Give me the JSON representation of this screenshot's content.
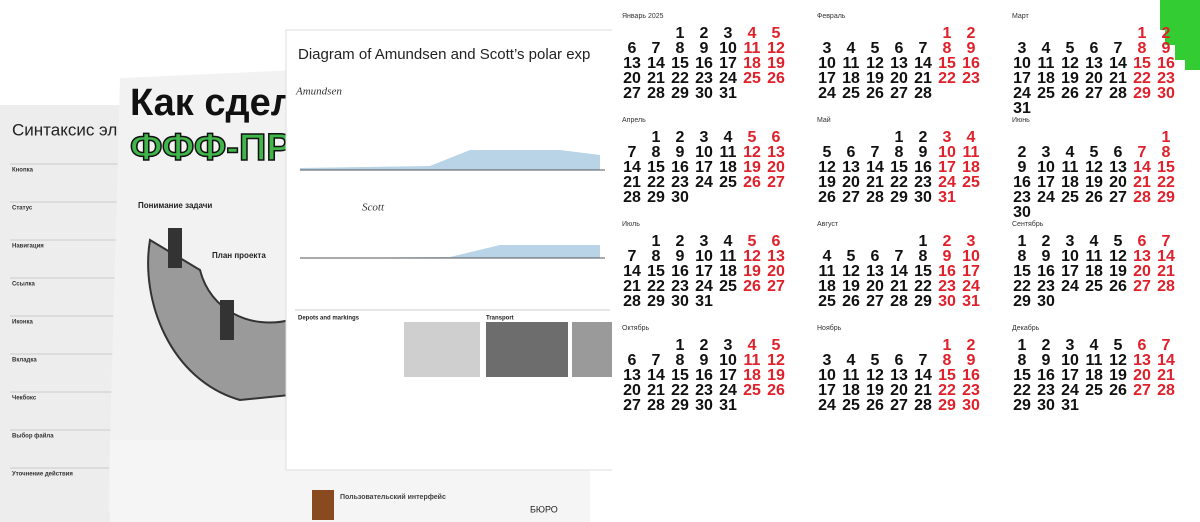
{
  "poster_syntax": {
    "title": "Синтаксис эл",
    "rows": [
      "Кнопка",
      "Статус",
      "Навигация",
      "Ссылка",
      "Иконка",
      "Вкладка",
      "Чекбокс",
      "Выбор файла",
      "Уточнение действия"
    ]
  },
  "poster_fff": {
    "title_line1": "Как сдел",
    "title_line2": "ФФФ-ПР",
    "step1": "Понимание задачи",
    "step2": "План проекта",
    "footer_title": "Пользовательский интерфейс",
    "footer_brand": "БЮРО"
  },
  "poster_polar": {
    "title": "Diagram of Amundsen and Scott’s polar exp",
    "track1": "Amundsen",
    "track2": "Scott",
    "section1": "Depots and markings",
    "section2": "Transport"
  },
  "calendar": {
    "weekend_color": "#e0202a",
    "months": [
      {
        "name": "Январь 2025",
        "weeks": [
          [
            null,
            null,
            1,
            2,
            3,
            4,
            5
          ],
          [
            6,
            7,
            8,
            9,
            10,
            11,
            12
          ],
          [
            13,
            14,
            15,
            16,
            17,
            18,
            19
          ],
          [
            20,
            21,
            22,
            23,
            24,
            25,
            26
          ],
          [
            27,
            28,
            29,
            30,
            31
          ]
        ]
      },
      {
        "name": "Февраль",
        "weeks": [
          [
            null,
            null,
            null,
            null,
            null,
            1,
            2
          ],
          [
            3,
            4,
            5,
            6,
            7,
            8,
            9
          ],
          [
            10,
            11,
            12,
            13,
            14,
            15,
            16
          ],
          [
            17,
            18,
            19,
            20,
            21,
            22,
            23
          ],
          [
            24,
            25,
            26,
            27,
            28
          ]
        ]
      },
      {
        "name": "Март",
        "weeks": [
          [
            null,
            null,
            null,
            null,
            null,
            1,
            2
          ],
          [
            3,
            4,
            5,
            6,
            7,
            8,
            9
          ],
          [
            10,
            11,
            12,
            13,
            14,
            15,
            16
          ],
          [
            17,
            18,
            19,
            20,
            21,
            22,
            23
          ],
          [
            24,
            25,
            26,
            27,
            28,
            29,
            30
          ],
          [
            31
          ]
        ]
      },
      {
        "name": "Апрель",
        "weeks": [
          [
            null,
            1,
            2,
            3,
            4,
            5,
            6
          ],
          [
            7,
            8,
            9,
            10,
            11,
            12,
            13
          ],
          [
            14,
            15,
            16,
            17,
            18,
            19,
            20
          ],
          [
            21,
            22,
            23,
            24,
            25,
            26,
            27
          ],
          [
            28,
            29,
            30
          ]
        ]
      },
      {
        "name": "Май",
        "weeks": [
          [
            null,
            null,
            null,
            1,
            2,
            3,
            4
          ],
          [
            5,
            6,
            7,
            8,
            9,
            10,
            11
          ],
          [
            12,
            13,
            14,
            15,
            16,
            17,
            18
          ],
          [
            19,
            20,
            21,
            22,
            23,
            24,
            25
          ],
          [
            26,
            27,
            28,
            29,
            30,
            31
          ]
        ]
      },
      {
        "name": "Июнь",
        "weeks": [
          [
            null,
            null,
            null,
            null,
            null,
            null,
            1
          ],
          [
            2,
            3,
            4,
            5,
            6,
            7,
            8
          ],
          [
            9,
            10,
            11,
            12,
            13,
            14,
            15
          ],
          [
            16,
            17,
            18,
            19,
            20,
            21,
            22
          ],
          [
            23,
            24,
            25,
            26,
            27,
            28,
            29
          ],
          [
            30
          ]
        ]
      },
      {
        "name": "Июль",
        "weeks": [
          [
            null,
            1,
            2,
            3,
            4,
            5,
            6
          ],
          [
            7,
            8,
            9,
            10,
            11,
            12,
            13
          ],
          [
            14,
            15,
            16,
            17,
            18,
            19,
            20
          ],
          [
            21,
            22,
            23,
            24,
            25,
            26,
            27
          ],
          [
            28,
            29,
            30,
            31
          ]
        ]
      },
      {
        "name": "Август",
        "weeks": [
          [
            null,
            null,
            null,
            null,
            1,
            2,
            3
          ],
          [
            4,
            5,
            6,
            7,
            8,
            9,
            10
          ],
          [
            11,
            12,
            13,
            14,
            15,
            16,
            17
          ],
          [
            18,
            19,
            20,
            21,
            22,
            23,
            24
          ],
          [
            25,
            26,
            27,
            28,
            29,
            30,
            31
          ]
        ]
      },
      {
        "name": "Сентябрь",
        "weeks": [
          [
            1,
            2,
            3,
            4,
            5,
            6,
            7
          ],
          [
            8,
            9,
            10,
            11,
            12,
            13,
            14
          ],
          [
            15,
            16,
            17,
            18,
            19,
            20,
            21
          ],
          [
            22,
            23,
            24,
            25,
            26,
            27,
            28
          ],
          [
            29,
            30
          ]
        ]
      },
      {
        "name": "Октябрь",
        "weeks": [
          [
            null,
            null,
            1,
            2,
            3,
            4,
            5
          ],
          [
            6,
            7,
            8,
            9,
            10,
            11,
            12
          ],
          [
            13,
            14,
            15,
            16,
            17,
            18,
            19
          ],
          [
            20,
            21,
            22,
            23,
            24,
            25,
            26
          ],
          [
            27,
            28,
            29,
            30,
            31
          ]
        ]
      },
      {
        "name": "Ноябрь",
        "weeks": [
          [
            null,
            null,
            null,
            null,
            null,
            1,
            2
          ],
          [
            3,
            4,
            5,
            6,
            7,
            8,
            9
          ],
          [
            10,
            11,
            12,
            13,
            14,
            15,
            16
          ],
          [
            17,
            18,
            19,
            20,
            21,
            22,
            23
          ],
          [
            24,
            25,
            26,
            27,
            28,
            29,
            30
          ]
        ]
      },
      {
        "name": "Декабрь",
        "weeks": [
          [
            1,
            2,
            3,
            4,
            5,
            6,
            7
          ],
          [
            8,
            9,
            10,
            11,
            12,
            13,
            14
          ],
          [
            15,
            16,
            17,
            18,
            19,
            20,
            21
          ],
          [
            22,
            23,
            24,
            25,
            26,
            27,
            28
          ],
          [
            29,
            30,
            31
          ]
        ]
      }
    ]
  }
}
